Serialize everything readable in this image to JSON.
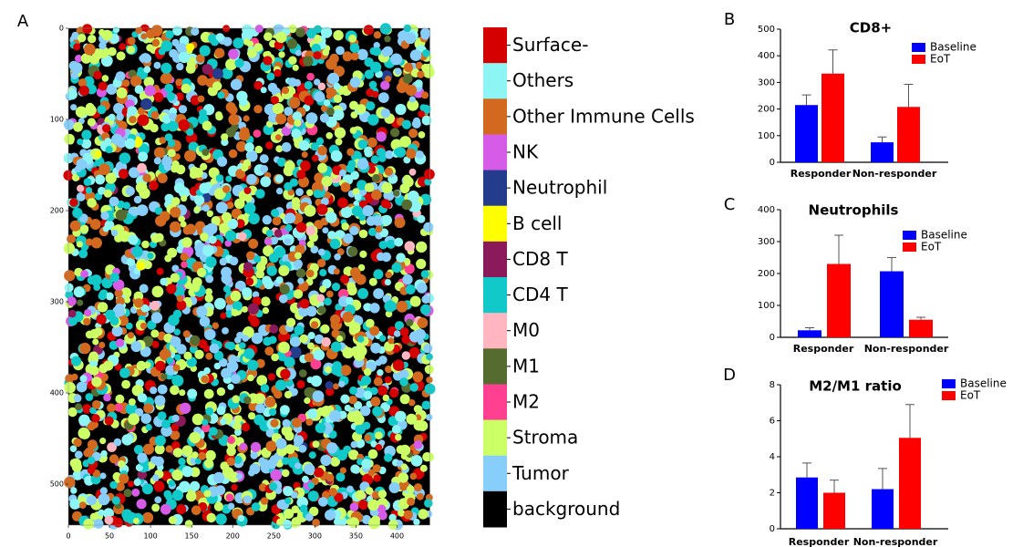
{
  "chart_data": [
    {
      "type": "image",
      "panel_label": "A",
      "xlim": [
        0,
        440
      ],
      "ylim": [
        0,
        545
      ],
      "y_inverted": true,
      "xticks": [
        0,
        50,
        100,
        150,
        200,
        250,
        300,
        350,
        400
      ],
      "yticks": [
        0,
        100,
        200,
        300,
        400,
        500
      ],
      "legend": [
        {
          "name": "Surface-",
          "color": "#d40000"
        },
        {
          "name": "Others",
          "color": "#8ef5f5"
        },
        {
          "name": "Other Immune Cells",
          "color": "#d2691e"
        },
        {
          "name": "NK",
          "color": "#d65ce8"
        },
        {
          "name": "Neutrophil",
          "color": "#233d8c"
        },
        {
          "name": "B cell",
          "color": "#ffff00"
        },
        {
          "name": "CD8 T",
          "color": "#8b1a5a"
        },
        {
          "name": "CD4 T",
          "color": "#12c9c9"
        },
        {
          "name": "M0",
          "color": "#ffb6c1"
        },
        {
          "name": "M1",
          "color": "#556b2f"
        },
        {
          "name": "M2",
          "color": "#ff3f8f"
        },
        {
          "name": "Stroma",
          "color": "#ccff66"
        },
        {
          "name": "Tumor",
          "color": "#87cefa"
        },
        {
          "name": "background",
          "color": "#000000"
        }
      ]
    },
    {
      "type": "bar",
      "panel_label": "B",
      "title": "CD8+",
      "categories": [
        "Responder",
        "Non-responder"
      ],
      "ylim": [
        0,
        500
      ],
      "yticks": [
        0,
        100,
        200,
        300,
        400,
        500
      ],
      "series": [
        {
          "name": "Baseline",
          "color": "#0000ff",
          "values": [
            215,
            75
          ],
          "errors": [
            38,
            20
          ]
        },
        {
          "name": "EoT",
          "color": "#ff0000",
          "values": [
            333,
            208
          ],
          "errors": [
            89,
            85
          ]
        }
      ]
    },
    {
      "type": "bar",
      "panel_label": "C",
      "title": "Neutrophils",
      "categories": [
        "Responder",
        "Non-responder"
      ],
      "ylim": [
        0,
        400
      ],
      "yticks": [
        0,
        100,
        200,
        300,
        400
      ],
      "series": [
        {
          "name": "Baseline",
          "color": "#0000ff",
          "values": [
            22,
            207
          ],
          "errors": [
            8,
            43
          ]
        },
        {
          "name": "EoT",
          "color": "#ff0000",
          "values": [
            230,
            55
          ],
          "errors": [
            90,
            8
          ]
        }
      ]
    },
    {
      "type": "bar",
      "panel_label": "D",
      "title": "M2/M1 ratio",
      "categories": [
        "Responder",
        "Non-responder"
      ],
      "ylim": [
        0,
        8
      ],
      "yticks": [
        0,
        2,
        4,
        6,
        8
      ],
      "series": [
        {
          "name": "Baseline",
          "color": "#0000ff",
          "values": [
            2.85,
            2.2
          ],
          "errors": [
            0.8,
            1.15
          ]
        },
        {
          "name": "EoT",
          "color": "#ff0000",
          "values": [
            2.0,
            5.05
          ],
          "errors": [
            0.7,
            1.85
          ]
        }
      ]
    }
  ]
}
